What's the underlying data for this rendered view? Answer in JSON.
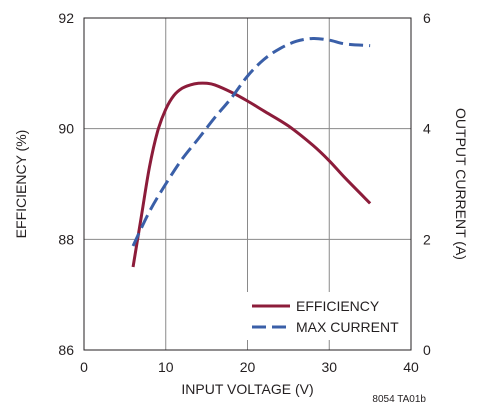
{
  "chart_data": {
    "type": "line",
    "xlabel": "INPUT VOLTAGE (V)",
    "ylabel_left": "EFFICIENCY (%)",
    "ylabel_right": "OUTPUT CURRENT (A)",
    "xlim": [
      0,
      40
    ],
    "ylim_left": [
      86,
      92
    ],
    "ylim_right": [
      0,
      6
    ],
    "x_ticks": [
      "0",
      "10",
      "20",
      "30",
      "40"
    ],
    "y_ticks_left": [
      "86",
      "88",
      "90",
      "92"
    ],
    "y_ticks_right": [
      "0",
      "2",
      "4",
      "6"
    ],
    "grid": true,
    "legend_position": "bottom-right",
    "note": "8054 TA01b",
    "series": [
      {
        "name": "EFFICIENCY",
        "axis": "left",
        "style": "solid",
        "color": "#8c1c3a",
        "points": [
          [
            6,
            87.5
          ],
          [
            7,
            88.4
          ],
          [
            8,
            89.3
          ],
          [
            9,
            89.95
          ],
          [
            10,
            90.35
          ],
          [
            11,
            90.6
          ],
          [
            12,
            90.73
          ],
          [
            13,
            90.79
          ],
          [
            14,
            90.82
          ],
          [
            15,
            90.82
          ],
          [
            16,
            90.79
          ],
          [
            18,
            90.66
          ],
          [
            20,
            90.5
          ],
          [
            22,
            90.32
          ],
          [
            25,
            90.05
          ],
          [
            28,
            89.7
          ],
          [
            30,
            89.42
          ],
          [
            32,
            89.1
          ],
          [
            35,
            88.65
          ]
        ]
      },
      {
        "name": "MAX CURRENT",
        "axis": "right",
        "style": "dashed",
        "color": "#3a5fa8",
        "points": [
          [
            6,
            1.88
          ],
          [
            8,
            2.5
          ],
          [
            10,
            3.0
          ],
          [
            12,
            3.45
          ],
          [
            14,
            3.82
          ],
          [
            16,
            4.2
          ],
          [
            18,
            4.55
          ],
          [
            20,
            4.95
          ],
          [
            22,
            5.25
          ],
          [
            24,
            5.45
          ],
          [
            26,
            5.58
          ],
          [
            28,
            5.63
          ],
          [
            30,
            5.6
          ],
          [
            32,
            5.53
          ],
          [
            35,
            5.5
          ]
        ]
      }
    ]
  }
}
